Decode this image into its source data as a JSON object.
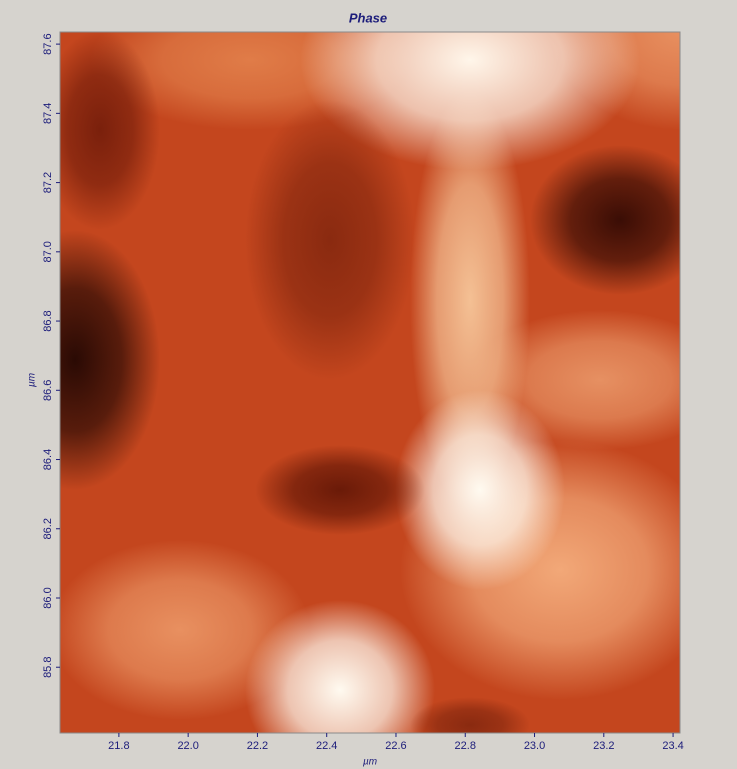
{
  "chart_data": {
    "type": "heatmap",
    "title": "Phase",
    "x_label": "µm",
    "y_label": "µm",
    "xlim": [
      21.63,
      23.42
    ],
    "xticks": [
      21.8,
      {
        "value": 22.0,
        "label": "22.0"
      },
      22.2,
      22.4,
      22.6,
      22.8,
      {
        "value": 23.0,
        "label": "23.0"
      },
      23.2,
      23.4
    ],
    "ylim": [
      85.61,
      87.635
    ],
    "yticks": [
      85.8,
      {
        "value": 86.0,
        "label": "86.0"
      },
      86.2,
      86.4,
      86.6,
      86.8,
      {
        "value": 87.0,
        "label": "87.0"
      },
      87.2,
      87.4,
      87.6
    ]
  }
}
